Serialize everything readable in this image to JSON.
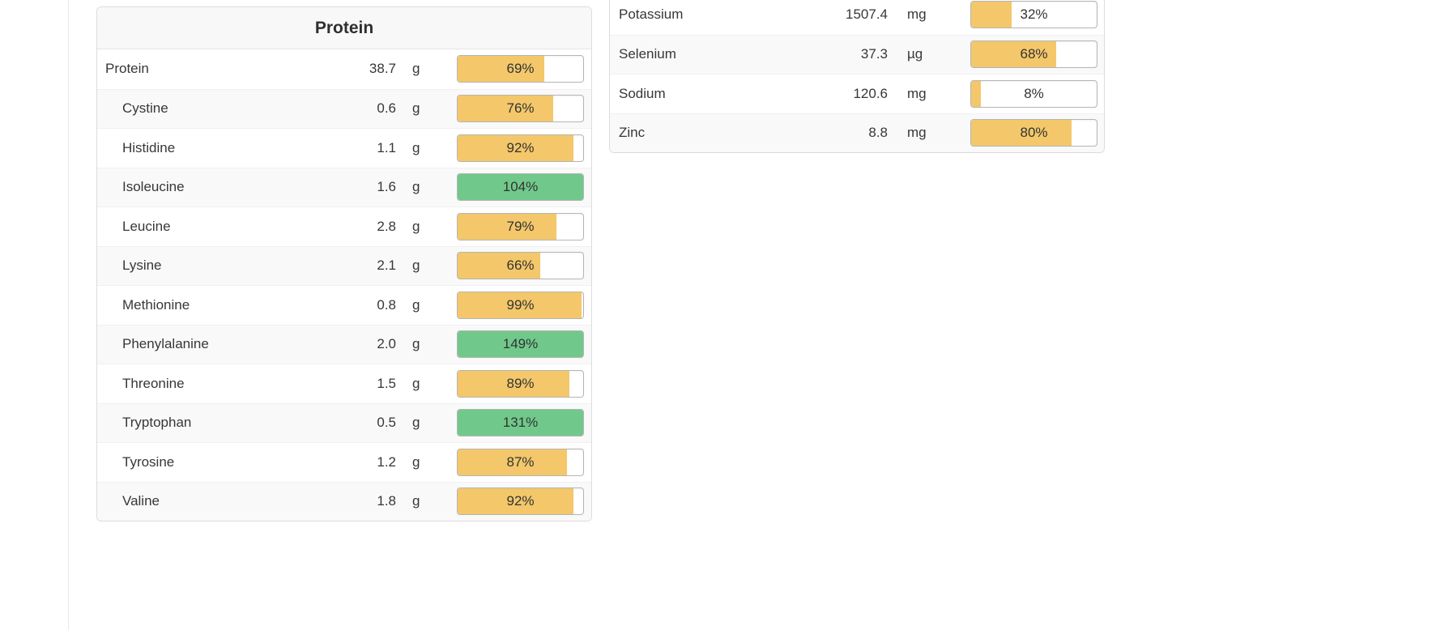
{
  "colors": {
    "bar_incomplete": "#f3c76a",
    "bar_complete": "#70c98b",
    "row_alt_background": "#f9f9f9",
    "panel_border": "#dcdcdc"
  },
  "protein_panel": {
    "title": "Protein",
    "rows": [
      {
        "label": "Protein",
        "value": "38.7",
        "unit": "g",
        "percent_label": "69%",
        "percent_value": 69,
        "indent": false
      },
      {
        "label": "Cystine",
        "value": "0.6",
        "unit": "g",
        "percent_label": "76%",
        "percent_value": 76,
        "indent": true
      },
      {
        "label": "Histidine",
        "value": "1.1",
        "unit": "g",
        "percent_label": "92%",
        "percent_value": 92,
        "indent": true
      },
      {
        "label": "Isoleucine",
        "value": "1.6",
        "unit": "g",
        "percent_label": "104%",
        "percent_value": 104,
        "indent": true
      },
      {
        "label": "Leucine",
        "value": "2.8",
        "unit": "g",
        "percent_label": "79%",
        "percent_value": 79,
        "indent": true
      },
      {
        "label": "Lysine",
        "value": "2.1",
        "unit": "g",
        "percent_label": "66%",
        "percent_value": 66,
        "indent": true
      },
      {
        "label": "Methionine",
        "value": "0.8",
        "unit": "g",
        "percent_label": "99%",
        "percent_value": 99,
        "indent": true
      },
      {
        "label": "Phenylalanine",
        "value": "2.0",
        "unit": "g",
        "percent_label": "149%",
        "percent_value": 149,
        "indent": true
      },
      {
        "label": "Threonine",
        "value": "1.5",
        "unit": "g",
        "percent_label": "89%",
        "percent_value": 89,
        "indent": true
      },
      {
        "label": "Tryptophan",
        "value": "0.5",
        "unit": "g",
        "percent_label": "131%",
        "percent_value": 131,
        "indent": true
      },
      {
        "label": "Tyrosine",
        "value": "1.2",
        "unit": "g",
        "percent_label": "87%",
        "percent_value": 87,
        "indent": true
      },
      {
        "label": "Valine",
        "value": "1.8",
        "unit": "g",
        "percent_label": "92%",
        "percent_value": 92,
        "indent": true
      }
    ]
  },
  "minerals_panel": {
    "rows": [
      {
        "label": "Potassium",
        "value": "1507.4",
        "unit": "mg",
        "percent_label": "32%",
        "percent_value": 32,
        "indent": false
      },
      {
        "label": "Selenium",
        "value": "37.3",
        "unit": "µg",
        "percent_label": "68%",
        "percent_value": 68,
        "indent": false
      },
      {
        "label": "Sodium",
        "value": "120.6",
        "unit": "mg",
        "percent_label": "8%",
        "percent_value": 8,
        "indent": false
      },
      {
        "label": "Zinc",
        "value": "8.8",
        "unit": "mg",
        "percent_label": "80%",
        "percent_value": 80,
        "indent": false
      }
    ]
  }
}
